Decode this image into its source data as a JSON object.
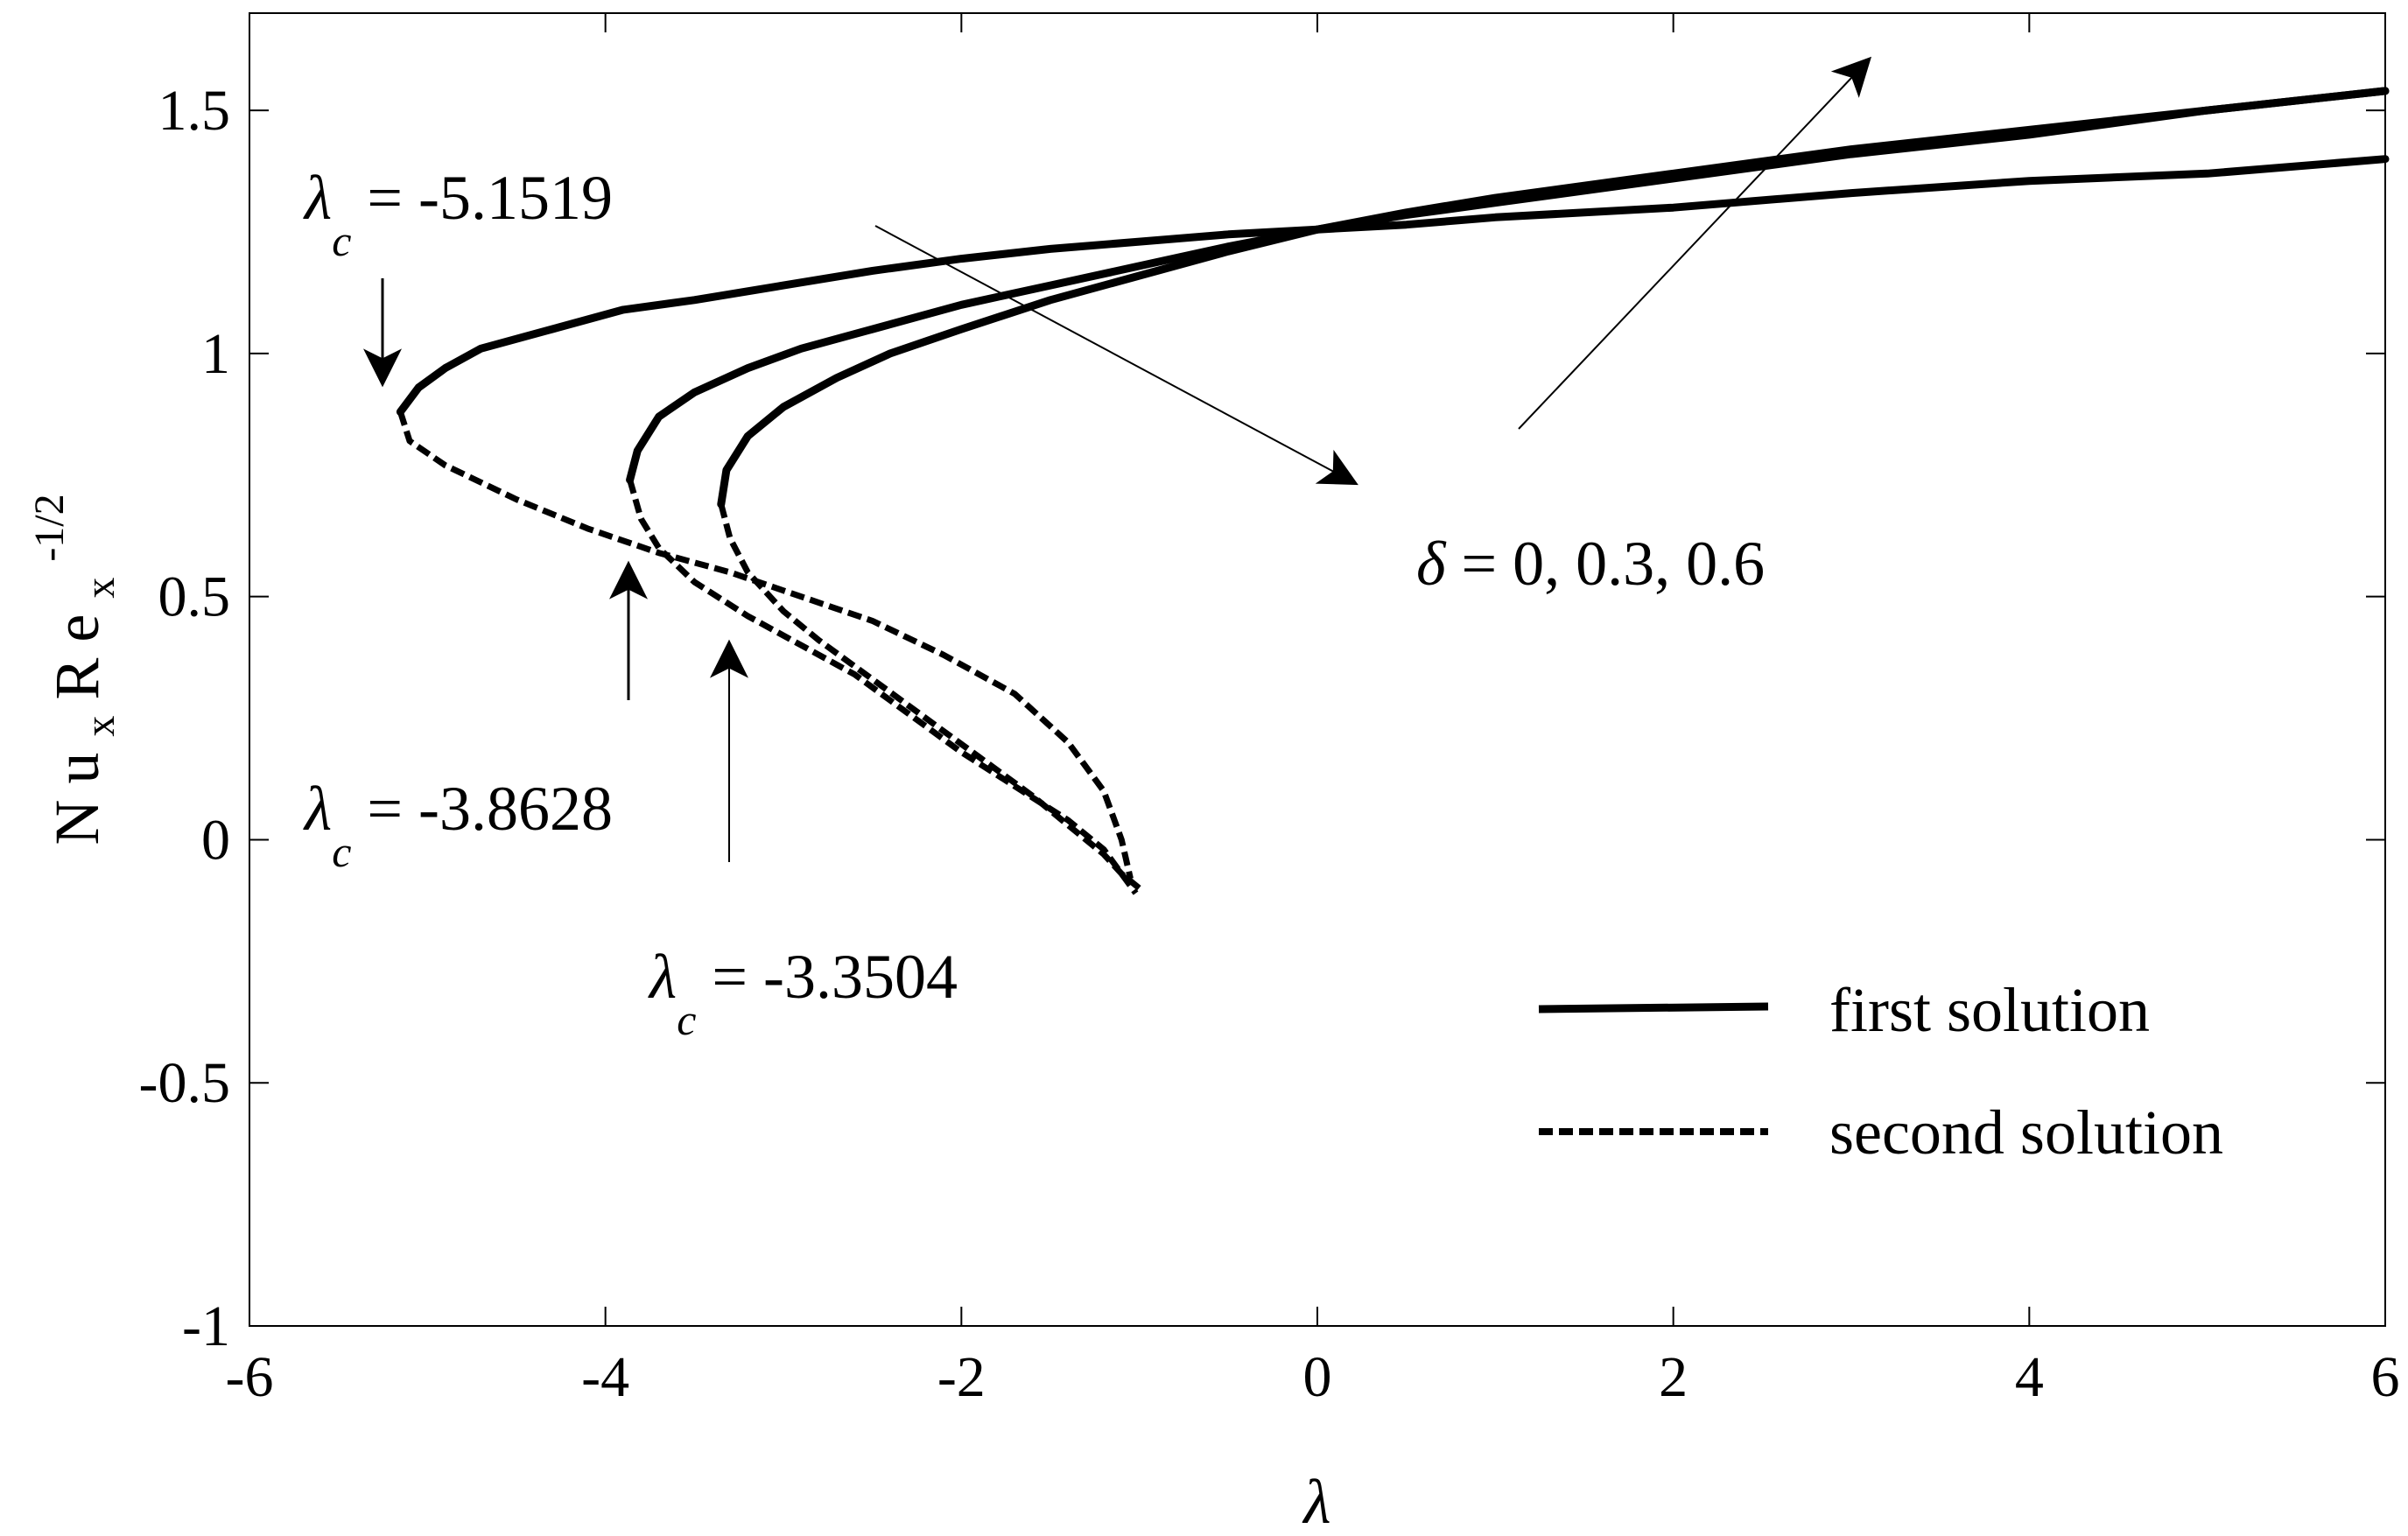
{
  "chart_data": {
    "type": "line",
    "title": "",
    "xlabel": "λ",
    "ylabel_parts": {
      "main": "N u",
      "sub1": "x",
      "mid": " R e",
      "sub2": "x",
      "sup": "-1/2"
    },
    "xlim": [
      -6,
      6
    ],
    "ylim": [
      -1,
      1.7
    ],
    "xticks": [
      -6,
      -4,
      -2,
      0,
      2,
      4,
      6
    ],
    "xtick_labels": [
      "-6",
      "-4",
      "-2",
      "0",
      "2",
      "4",
      "6"
    ],
    "yticks": [
      -1,
      -0.5,
      0,
      0.5,
      1,
      1.5
    ],
    "ytick_labels": [
      "-1",
      "-0.5",
      "0",
      "0.5",
      "1",
      "1.5"
    ],
    "grid": false,
    "legend": {
      "position": "bottom-right",
      "entries": [
        {
          "label": "first solution",
          "style": "solid"
        },
        {
          "label": "second solution",
          "style": "dashed"
        }
      ]
    },
    "annotations": {
      "lc1": {
        "symbol": "λ",
        "sub": "c",
        "text": " = -5.1519"
      },
      "lc2": {
        "symbol": "λ",
        "sub": "c",
        "text": " = -3.8628"
      },
      "lc3": {
        "symbol": "λ",
        "sub": "c",
        "text": " = -3.3504"
      },
      "delta": {
        "symbol": "δ",
        "text": " = 0, 0.3, 0.6"
      }
    },
    "series": [
      {
        "delta": 0,
        "first_solution": {
          "x": [
            -5.1519,
            -5.05,
            -4.9,
            -4.7,
            -4.3,
            -3.9,
            -3.5,
            -3.0,
            -2.5,
            -2.0,
            -1.5,
            -1.0,
            -0.5,
            0.0,
            0.5,
            1.0,
            2.0,
            3.0,
            4.0,
            5.0,
            6.0
          ],
          "y": [
            0.88,
            0.93,
            0.97,
            1.01,
            1.05,
            1.09,
            1.11,
            1.14,
            1.17,
            1.195,
            1.215,
            1.23,
            1.245,
            1.255,
            1.265,
            1.28,
            1.3,
            1.33,
            1.355,
            1.37,
            1.4
          ]
        },
        "second_solution": {
          "x": [
            -5.1519,
            -5.1,
            -4.9,
            -4.5,
            -4.1,
            -3.7,
            -3.3,
            -2.9,
            -2.5,
            -2.1,
            -1.7,
            -1.4,
            -1.2,
            -1.1,
            -1.05
          ],
          "y": [
            0.88,
            0.82,
            0.77,
            0.7,
            0.64,
            0.59,
            0.55,
            0.5,
            0.45,
            0.38,
            0.3,
            0.2,
            0.1,
            0.0,
            -0.08
          ]
        }
      },
      {
        "delta": 0.3,
        "first_solution": {
          "x": [
            -3.8628,
            -3.82,
            -3.7,
            -3.5,
            -3.2,
            -2.9,
            -2.5,
            -2.0,
            -1.5,
            -1.0,
            -0.5,
            0.0,
            0.5,
            1.0,
            2.0,
            3.0,
            4.0,
            5.0,
            6.0
          ],
          "y": [
            0.74,
            0.8,
            0.87,
            0.92,
            0.97,
            1.01,
            1.05,
            1.1,
            1.14,
            1.18,
            1.22,
            1.255,
            1.285,
            1.31,
            1.36,
            1.41,
            1.45,
            1.5,
            1.54
          ]
        },
        "second_solution": {
          "x": [
            -3.8628,
            -3.8,
            -3.7,
            -3.5,
            -3.2,
            -2.9,
            -2.6,
            -2.3,
            -2.0,
            -1.7,
            -1.4,
            -1.2,
            -1.1,
            -1.02
          ],
          "y": [
            0.74,
            0.66,
            0.6,
            0.53,
            0.46,
            0.4,
            0.34,
            0.26,
            0.18,
            0.11,
            0.04,
            -0.02,
            -0.07,
            -0.11
          ]
        }
      },
      {
        "delta": 0.6,
        "first_solution": {
          "x": [
            -3.3504,
            -3.32,
            -3.2,
            -3.0,
            -2.7,
            -2.4,
            -2.0,
            -1.5,
            -1.0,
            -0.5,
            0.0,
            0.5,
            1.0,
            2.0,
            3.0,
            4.0,
            5.0,
            6.0
          ],
          "y": [
            0.69,
            0.76,
            0.83,
            0.89,
            0.95,
            1.0,
            1.05,
            1.11,
            1.16,
            1.21,
            1.255,
            1.29,
            1.32,
            1.37,
            1.42,
            1.46,
            1.5,
            1.54
          ]
        },
        "second_solution": {
          "x": [
            -3.3504,
            -3.3,
            -3.2,
            -3.0,
            -2.8,
            -2.5,
            -2.2,
            -1.9,
            -1.6,
            -1.4,
            -1.2,
            -1.1,
            -1.0
          ],
          "y": [
            0.69,
            0.62,
            0.55,
            0.47,
            0.41,
            0.33,
            0.25,
            0.17,
            0.09,
            0.03,
            -0.03,
            -0.07,
            -0.1
          ]
        }
      }
    ]
  }
}
